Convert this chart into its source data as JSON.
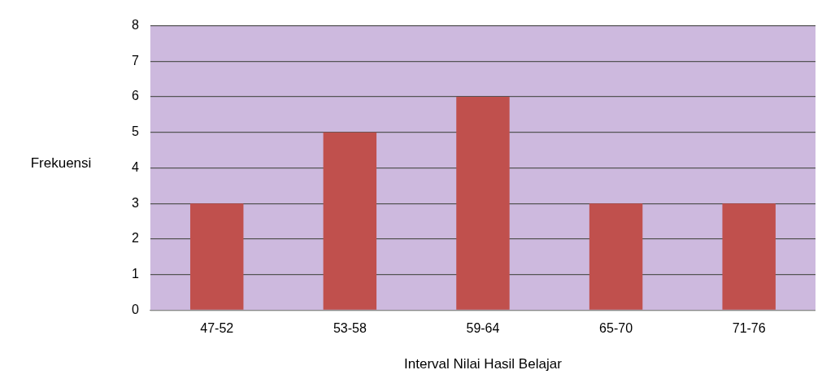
{
  "chart_data": {
    "type": "bar",
    "xlabel": "Interval Nilai Hasil Belajar",
    "ylabel": "Frekuensi",
    "categories": [
      "47-52",
      "53-58",
      "59-64",
      "65-70",
      "71-76"
    ],
    "values": [
      3,
      5,
      6,
      3,
      3
    ],
    "color": "#c0504d",
    "ylim": [
      0,
      8
    ],
    "yticks": [
      0,
      1,
      2,
      3,
      4,
      5,
      6,
      7,
      8
    ],
    "grid": "y",
    "legend": false
  }
}
